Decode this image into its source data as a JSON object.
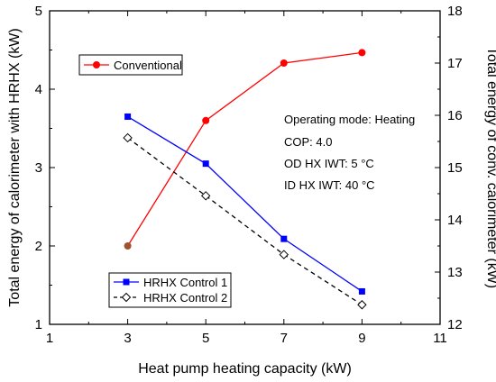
{
  "chart_data": {
    "type": "line",
    "xlabel": "Heat pump heating capacity (kW)",
    "ylabel_left": "Total energy of calorimeter with HRHX (kW)",
    "ylabel_right": "Total energy of conv. calorimeter (kW)",
    "xlim": [
      1,
      11
    ],
    "ylim_left": [
      1,
      5
    ],
    "ylim_right": [
      12,
      18
    ],
    "x_ticks": [
      "1",
      "3",
      "5",
      "7",
      "9",
      "11"
    ],
    "y_left_ticks": [
      "1",
      "2",
      "3",
      "4",
      "5"
    ],
    "y_right_ticks": [
      "12",
      "13",
      "14",
      "15",
      "16",
      "17",
      "18"
    ],
    "series": [
      {
        "name": "Conventional",
        "axis": "right",
        "color": "#ff0000",
        "marker": "filled-circle",
        "x": [
          3,
          5,
          7,
          9
        ],
        "y": [
          13.5,
          15.9,
          17.0,
          17.2
        ]
      },
      {
        "name": "HRHX Control 1",
        "axis": "left",
        "color": "#0000ff",
        "marker": "filled-square",
        "line": "solid",
        "x": [
          3,
          5,
          7,
          9
        ],
        "y": [
          3.65,
          3.05,
          2.09,
          1.42
        ]
      },
      {
        "name": "HRHX Control 2",
        "axis": "left",
        "color": "#000000",
        "marker": "open-diamond",
        "line": "dashed",
        "x": [
          3,
          5,
          7,
          9
        ],
        "y": [
          3.38,
          2.64,
          1.89,
          1.25
        ]
      }
    ],
    "annotations": [
      "Operating mode: Heating",
      "COP: 4.0",
      "OD HX IWT: 5 °C",
      "ID HX IWT: 40 °C"
    ],
    "colors": {
      "conventional": "#ff0000",
      "conventional_start_marker": "#a0522d",
      "control1": "#0000ff",
      "control2": "#000000"
    }
  }
}
